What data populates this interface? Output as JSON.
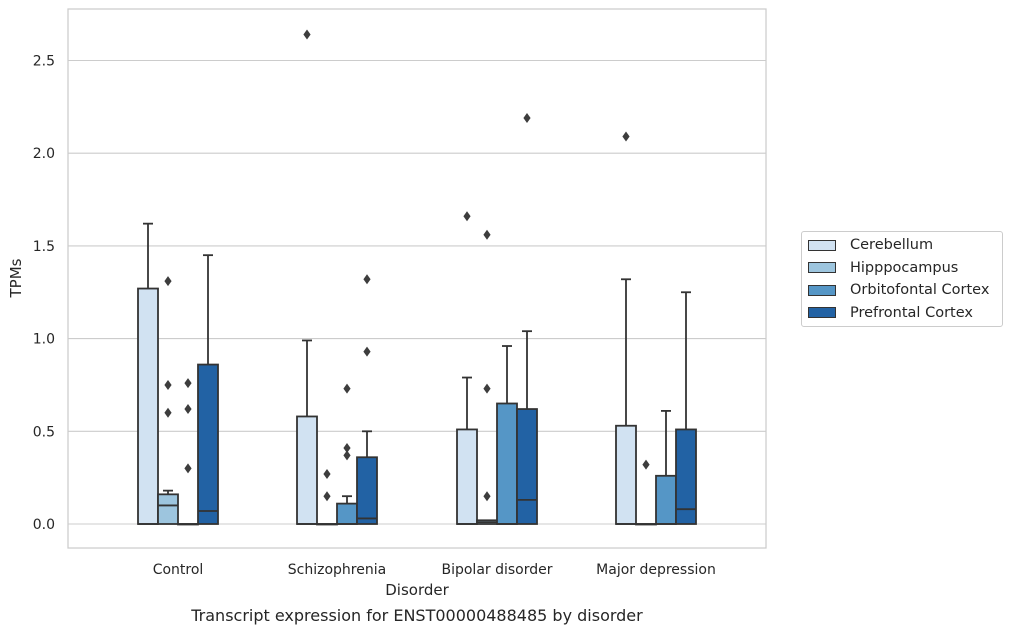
{
  "chart_data": {
    "type": "box",
    "title": "",
    "xlabel": "Disorder",
    "ylabel": "TPMs",
    "ylim": [
      -0.13,
      2.78
    ],
    "yticks": [
      "0.0",
      "0.5",
      "1.0",
      "1.5",
      "2.0",
      "2.5"
    ],
    "ytick_values": [
      0.0,
      0.5,
      1.0,
      1.5,
      2.0,
      2.5
    ],
    "grid": "horizontal",
    "legend_position": "right",
    "categories": [
      "Control",
      "Schizophrenia",
      "Bipolar disorder",
      "Major depression"
    ],
    "series": [
      {
        "name": "Cerebellum",
        "color": "#d1e2f2",
        "boxes": [
          {
            "q1": 0.0,
            "median": 0.0,
            "q3": 1.27,
            "whisker_low": 0.0,
            "whisker_high": 1.62,
            "outliers": []
          },
          {
            "q1": 0.0,
            "median": 0.0,
            "q3": 0.58,
            "whisker_low": 0.0,
            "whisker_high": 0.99,
            "outliers": [
              2.64
            ]
          },
          {
            "q1": 0.0,
            "median": 0.0,
            "q3": 0.51,
            "whisker_low": 0.0,
            "whisker_high": 0.79,
            "outliers": [
              1.66
            ]
          },
          {
            "q1": 0.0,
            "median": 0.0,
            "q3": 0.53,
            "whisker_low": 0.0,
            "whisker_high": 1.32,
            "outliers": [
              2.09
            ]
          }
        ]
      },
      {
        "name": "Hipppocampus",
        "color": "#9dc5de",
        "boxes": [
          {
            "q1": 0.0,
            "median": 0.1,
            "q3": 0.16,
            "whisker_low": 0.0,
            "whisker_high": 0.18,
            "outliers": [
              1.31,
              0.75,
              0.6
            ]
          },
          {
            "q1": 0.0,
            "median": 0.0,
            "q3": 0.0,
            "whisker_low": 0.0,
            "whisker_high": 0.0,
            "outliers": [
              0.27,
              0.15
            ]
          },
          {
            "q1": 0.0,
            "median": 0.01,
            "q3": 0.02,
            "whisker_low": 0.0,
            "whisker_high": 0.02,
            "outliers": [
              1.56,
              0.73,
              0.15
            ]
          },
          {
            "q1": 0.0,
            "median": 0.0,
            "q3": 0.0,
            "whisker_low": 0.0,
            "whisker_high": 0.0,
            "outliers": [
              0.32
            ]
          }
        ]
      },
      {
        "name": "Orbitofontal Cortex",
        "color": "#5596c6",
        "boxes": [
          {
            "q1": 0.0,
            "median": 0.0,
            "q3": 0.0,
            "whisker_low": 0.0,
            "whisker_high": 0.0,
            "outliers": [
              0.76,
              0.62,
              0.3
            ]
          },
          {
            "q1": 0.0,
            "median": 0.0,
            "q3": 0.11,
            "whisker_low": 0.0,
            "whisker_high": 0.15,
            "outliers": [
              0.73,
              0.41,
              0.37
            ]
          },
          {
            "q1": 0.0,
            "median": 0.0,
            "q3": 0.65,
            "whisker_low": 0.0,
            "whisker_high": 0.96,
            "outliers": []
          },
          {
            "q1": 0.0,
            "median": 0.0,
            "q3": 0.26,
            "whisker_low": 0.0,
            "whisker_high": 0.61,
            "outliers": []
          }
        ]
      },
      {
        "name": "Prefrontal Cortex",
        "color": "#2262a4",
        "boxes": [
          {
            "q1": 0.0,
            "median": 0.07,
            "q3": 0.86,
            "whisker_low": 0.0,
            "whisker_high": 1.45,
            "outliers": []
          },
          {
            "q1": 0.0,
            "median": 0.03,
            "q3": 0.36,
            "whisker_low": 0.0,
            "whisker_high": 0.5,
            "outliers": [
              1.32,
              0.93
            ]
          },
          {
            "q1": 0.0,
            "median": 0.13,
            "q3": 0.62,
            "whisker_low": 0.0,
            "whisker_high": 1.04,
            "outliers": [
              2.19
            ]
          },
          {
            "q1": 0.0,
            "median": 0.08,
            "q3": 0.51,
            "whisker_low": 0.0,
            "whisker_high": 1.25,
            "outliers": []
          }
        ]
      }
    ]
  },
  "caption": "Transcript expression for ENST00000488485 by disorder"
}
